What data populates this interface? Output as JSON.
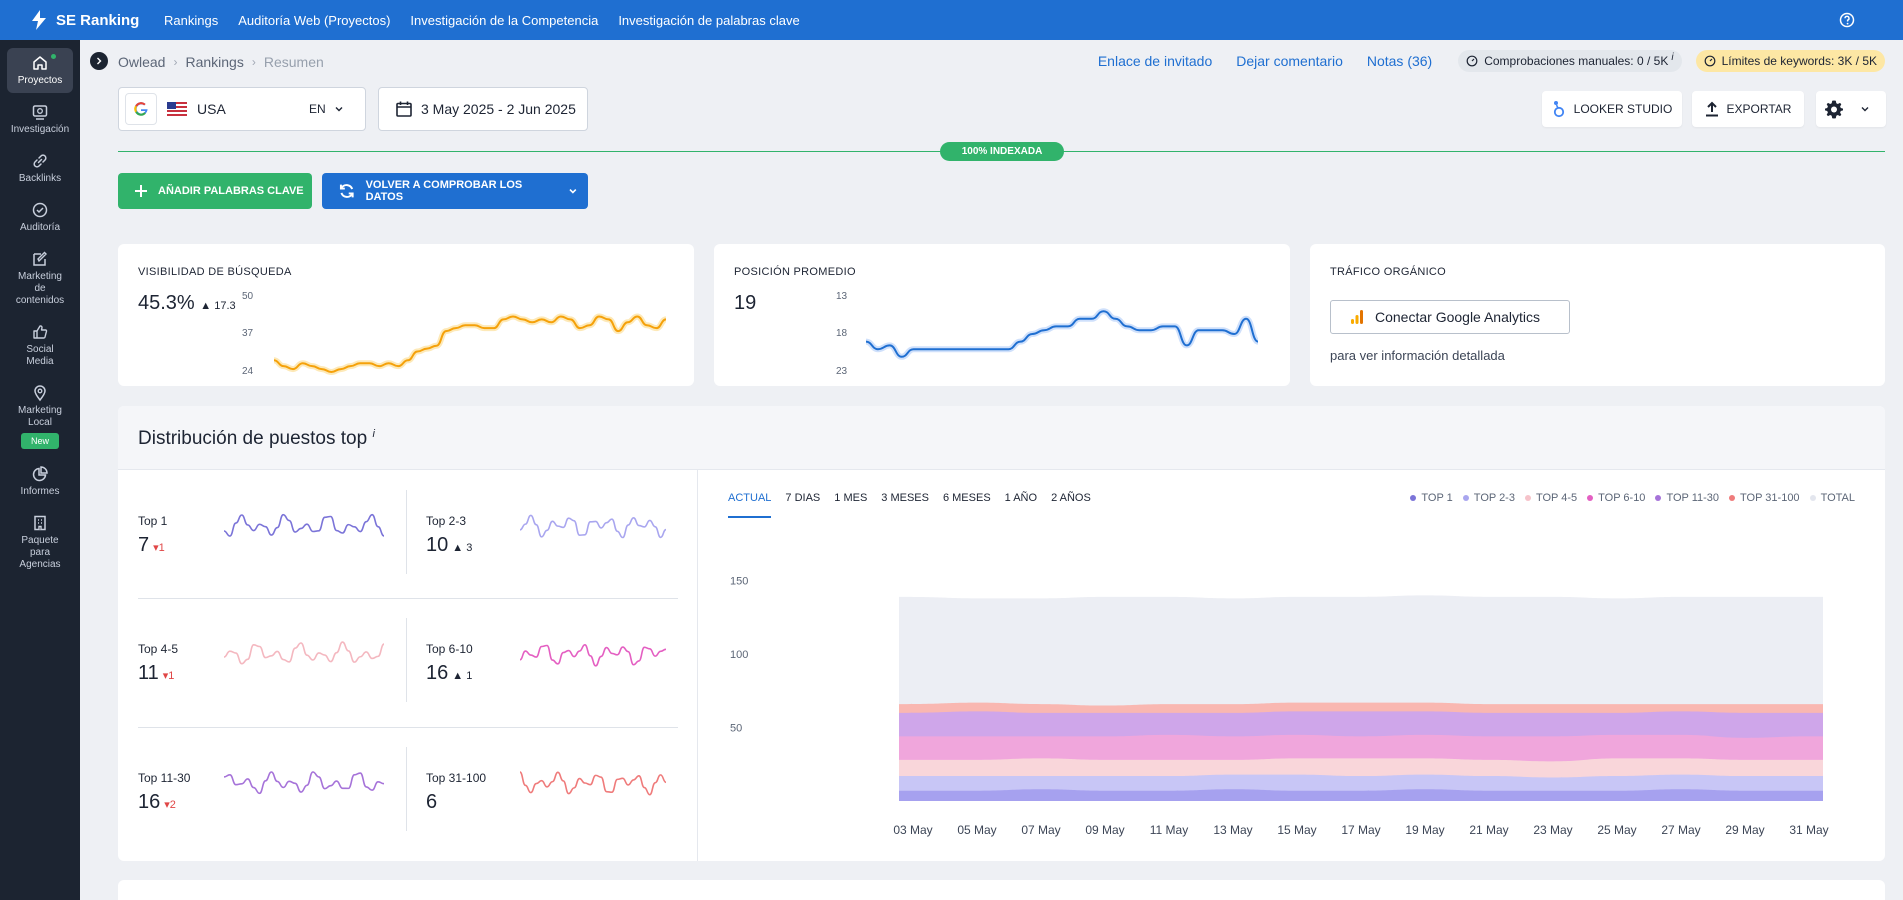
{
  "app": {
    "brand": "SE Ranking"
  },
  "topnav": [
    "Rankings",
    "Auditoría Web (Proyectos)",
    "Investigación de la Competencia",
    "Investigación de palabras clave"
  ],
  "sidebar": [
    {
      "label": "Proyectos",
      "icon": "home-icon"
    },
    {
      "label": "Investigación",
      "icon": "research-icon"
    },
    {
      "label": "Backlinks",
      "icon": "link-icon"
    },
    {
      "label": "Auditoría",
      "icon": "check-circle-icon"
    },
    {
      "label": "Marketing de contenidos",
      "icon": "edit-icon"
    },
    {
      "label": "Social Media",
      "icon": "thumbs-up-icon"
    },
    {
      "label": "Marketing Local",
      "icon": "map-pin-icon",
      "badge": "New"
    },
    {
      "label": "Informes",
      "icon": "pie-chart-icon"
    },
    {
      "label": "Paquete para Agencias",
      "icon": "building-icon"
    }
  ],
  "breadcrumb": [
    "Owlead",
    "Rankings",
    "Resumen"
  ],
  "header_links": {
    "guest": "Enlace de invitado",
    "comment": "Dejar comentario",
    "notes": "Notas (36)"
  },
  "manual_checks": {
    "label": "Comprobaciones manuales:",
    "value": "0 / 5K"
  },
  "keyword_limits": {
    "label": "Límites de keywords:",
    "value": "3K / 5K"
  },
  "country": {
    "engine": "G",
    "name": "USA",
    "lang": "EN"
  },
  "date_range": "3 May 2025 - 2 Jun 2025",
  "buttons": {
    "looker": "LOOKER STUDIO",
    "export": "EXPORTAR",
    "add_keywords": "AÑADIR PALABRAS CLAVE",
    "recheck": "VOLVER A COMPROBAR LOS DATOS"
  },
  "indexed": "100% INDEXADA",
  "visibility": {
    "title": "VISIBILIDAD DE BÚSQUEDA",
    "value": "45.3%",
    "delta": "17.3",
    "ticks": [
      "50",
      "37",
      "24"
    ],
    "values": [
      28,
      26,
      25,
      27,
      26,
      25,
      24,
      25,
      26,
      27,
      27,
      26,
      27,
      26,
      28,
      31,
      32,
      33,
      38,
      39,
      40,
      40,
      39,
      39,
      42,
      43,
      42,
      41,
      42,
      41,
      43,
      42,
      39,
      40,
      43,
      42,
      38,
      41,
      43,
      40,
      39,
      42
    ]
  },
  "avg_position": {
    "title": "POSICIÓN PROMEDIO",
    "value": "19",
    "ticks": [
      "13",
      "18",
      "23"
    ],
    "values": [
      19,
      20,
      19.5,
      21,
      20,
      20,
      20,
      20,
      20,
      20,
      20,
      20,
      20,
      19,
      18,
      17.5,
      17,
      17,
      16,
      16,
      15,
      16,
      17,
      17.5,
      17.5,
      17,
      17,
      19.5,
      17.5,
      17.5,
      17.5,
      18,
      16,
      19
    ]
  },
  "organic": {
    "title": "TRÁFICO ORGÁNICO",
    "button": "Conectar Google Analytics",
    "sub": "para ver información detallada"
  },
  "distribution": {
    "title": "Distribución de puestos top",
    "cells": [
      {
        "label": "Top 1",
        "value": "7",
        "delta": "1",
        "dir": "down",
        "color": "#7b74d8"
      },
      {
        "label": "Top 2-3",
        "value": "10",
        "delta": "3",
        "dir": "up",
        "color": "#a9a6ef"
      },
      {
        "label": "Top 4-5",
        "value": "11",
        "delta": "1",
        "dir": "down",
        "color": "#f4b8c0"
      },
      {
        "label": "Top 6-10",
        "value": "16",
        "delta": "1",
        "dir": "up",
        "color": "#e45fc2"
      },
      {
        "label": "Top 11-30",
        "value": "16",
        "delta": "2",
        "dir": "down",
        "color": "#a673d9"
      },
      {
        "label": "Top 31-100",
        "value": "6",
        "delta": "",
        "dir": "none",
        "color": "#ef7b7b"
      }
    ],
    "tabs": [
      "ACTUAL",
      "7 DIAS",
      "1 MES",
      "3 MESES",
      "6 MESES",
      "1 AÑO",
      "2 AÑOS"
    ],
    "legend": [
      {
        "name": "TOP 1",
        "color": "#7b74d8"
      },
      {
        "name": "TOP 2-3",
        "color": "#a9a6ef"
      },
      {
        "name": "TOP 4-5",
        "color": "#f6c3ca"
      },
      {
        "name": "TOP 6-10",
        "color": "#e45fc2"
      },
      {
        "name": "TOP 11-30",
        "color": "#a673d9"
      },
      {
        "name": "TOP 31-100",
        "color": "#ef7b7b"
      },
      {
        "name": "TOTAL",
        "color": "#e3e6ee"
      }
    ]
  },
  "chart_data": {
    "type": "area",
    "x": [
      "03 May",
      "05 May",
      "07 May",
      "09 May",
      "11 May",
      "13 May",
      "15 May",
      "17 May",
      "19 May",
      "21 May",
      "23 May",
      "25 May",
      "27 May",
      "29 May",
      "31 May"
    ],
    "y_ticks": [
      "150",
      "100",
      "50"
    ],
    "ylim": [
      0,
      160
    ],
    "series": [
      {
        "name": "TOP 1",
        "values": [
          7,
          7,
          8,
          7,
          7,
          8,
          7,
          7,
          8,
          7,
          7,
          7,
          8,
          7,
          7
        ]
      },
      {
        "name": "TOP 2-3",
        "values": [
          10,
          10,
          9,
          10,
          10,
          10,
          11,
          10,
          10,
          10,
          9,
          10,
          10,
          10,
          10
        ]
      },
      {
        "name": "TOP 4-5",
        "values": [
          11,
          11,
          12,
          11,
          11,
          10,
          11,
          12,
          11,
          11,
          11,
          12,
          11,
          11,
          11
        ]
      },
      {
        "name": "TOP 6-10",
        "values": [
          16,
          16,
          15,
          16,
          17,
          16,
          16,
          15,
          16,
          16,
          17,
          16,
          16,
          15,
          16
        ]
      },
      {
        "name": "TOP 11-30",
        "values": [
          16,
          17,
          16,
          16,
          15,
          16,
          16,
          17,
          16,
          16,
          16,
          15,
          16,
          17,
          16
        ]
      },
      {
        "name": "TOP 31-100",
        "values": [
          6,
          6,
          6,
          5,
          6,
          6,
          6,
          6,
          6,
          6,
          6,
          6,
          5,
          6,
          6
        ]
      },
      {
        "name": "TOTAL",
        "values": [
          139,
          138,
          138,
          139,
          139,
          138,
          139,
          139,
          140,
          139,
          139,
          138,
          139,
          139,
          139
        ]
      }
    ]
  }
}
